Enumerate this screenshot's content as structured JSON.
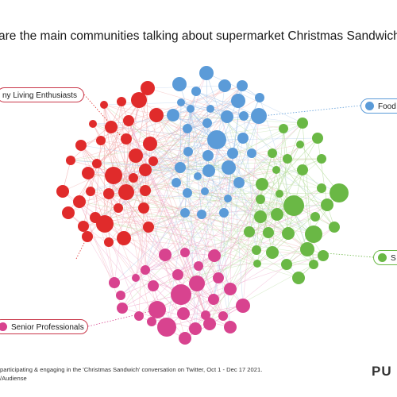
{
  "title": "are the main communities talking about supermarket Christmas Sandwiches?",
  "communities": [
    {
      "key": "red",
      "label": "ny Living Enthusiasts",
      "color": "#e02b2b",
      "border": "#c9384a"
    },
    {
      "key": "blue",
      "label": "Food",
      "color": "#5b9bd8",
      "border": "#5b9bd8"
    },
    {
      "key": "green",
      "label": "S",
      "color": "#6ab845",
      "border": "#6ab845"
    },
    {
      "key": "pink",
      "label": "Senior Professionals",
      "color": "#d8438f",
      "border": "#c9384a"
    }
  ],
  "footer": {
    "line1": "participating & engaging in the 'Christmas Sandwich' conversation on Twitter, Oct 1 - Dec 17 2021.",
    "line2": "/Audiense",
    "brand": "PU"
  },
  "colors": {
    "edge_red": "#f2a7a7",
    "edge_blue": "#a9c8ea",
    "edge_green": "#b5dc9c",
    "edge_pink": "#efa3c9"
  }
}
